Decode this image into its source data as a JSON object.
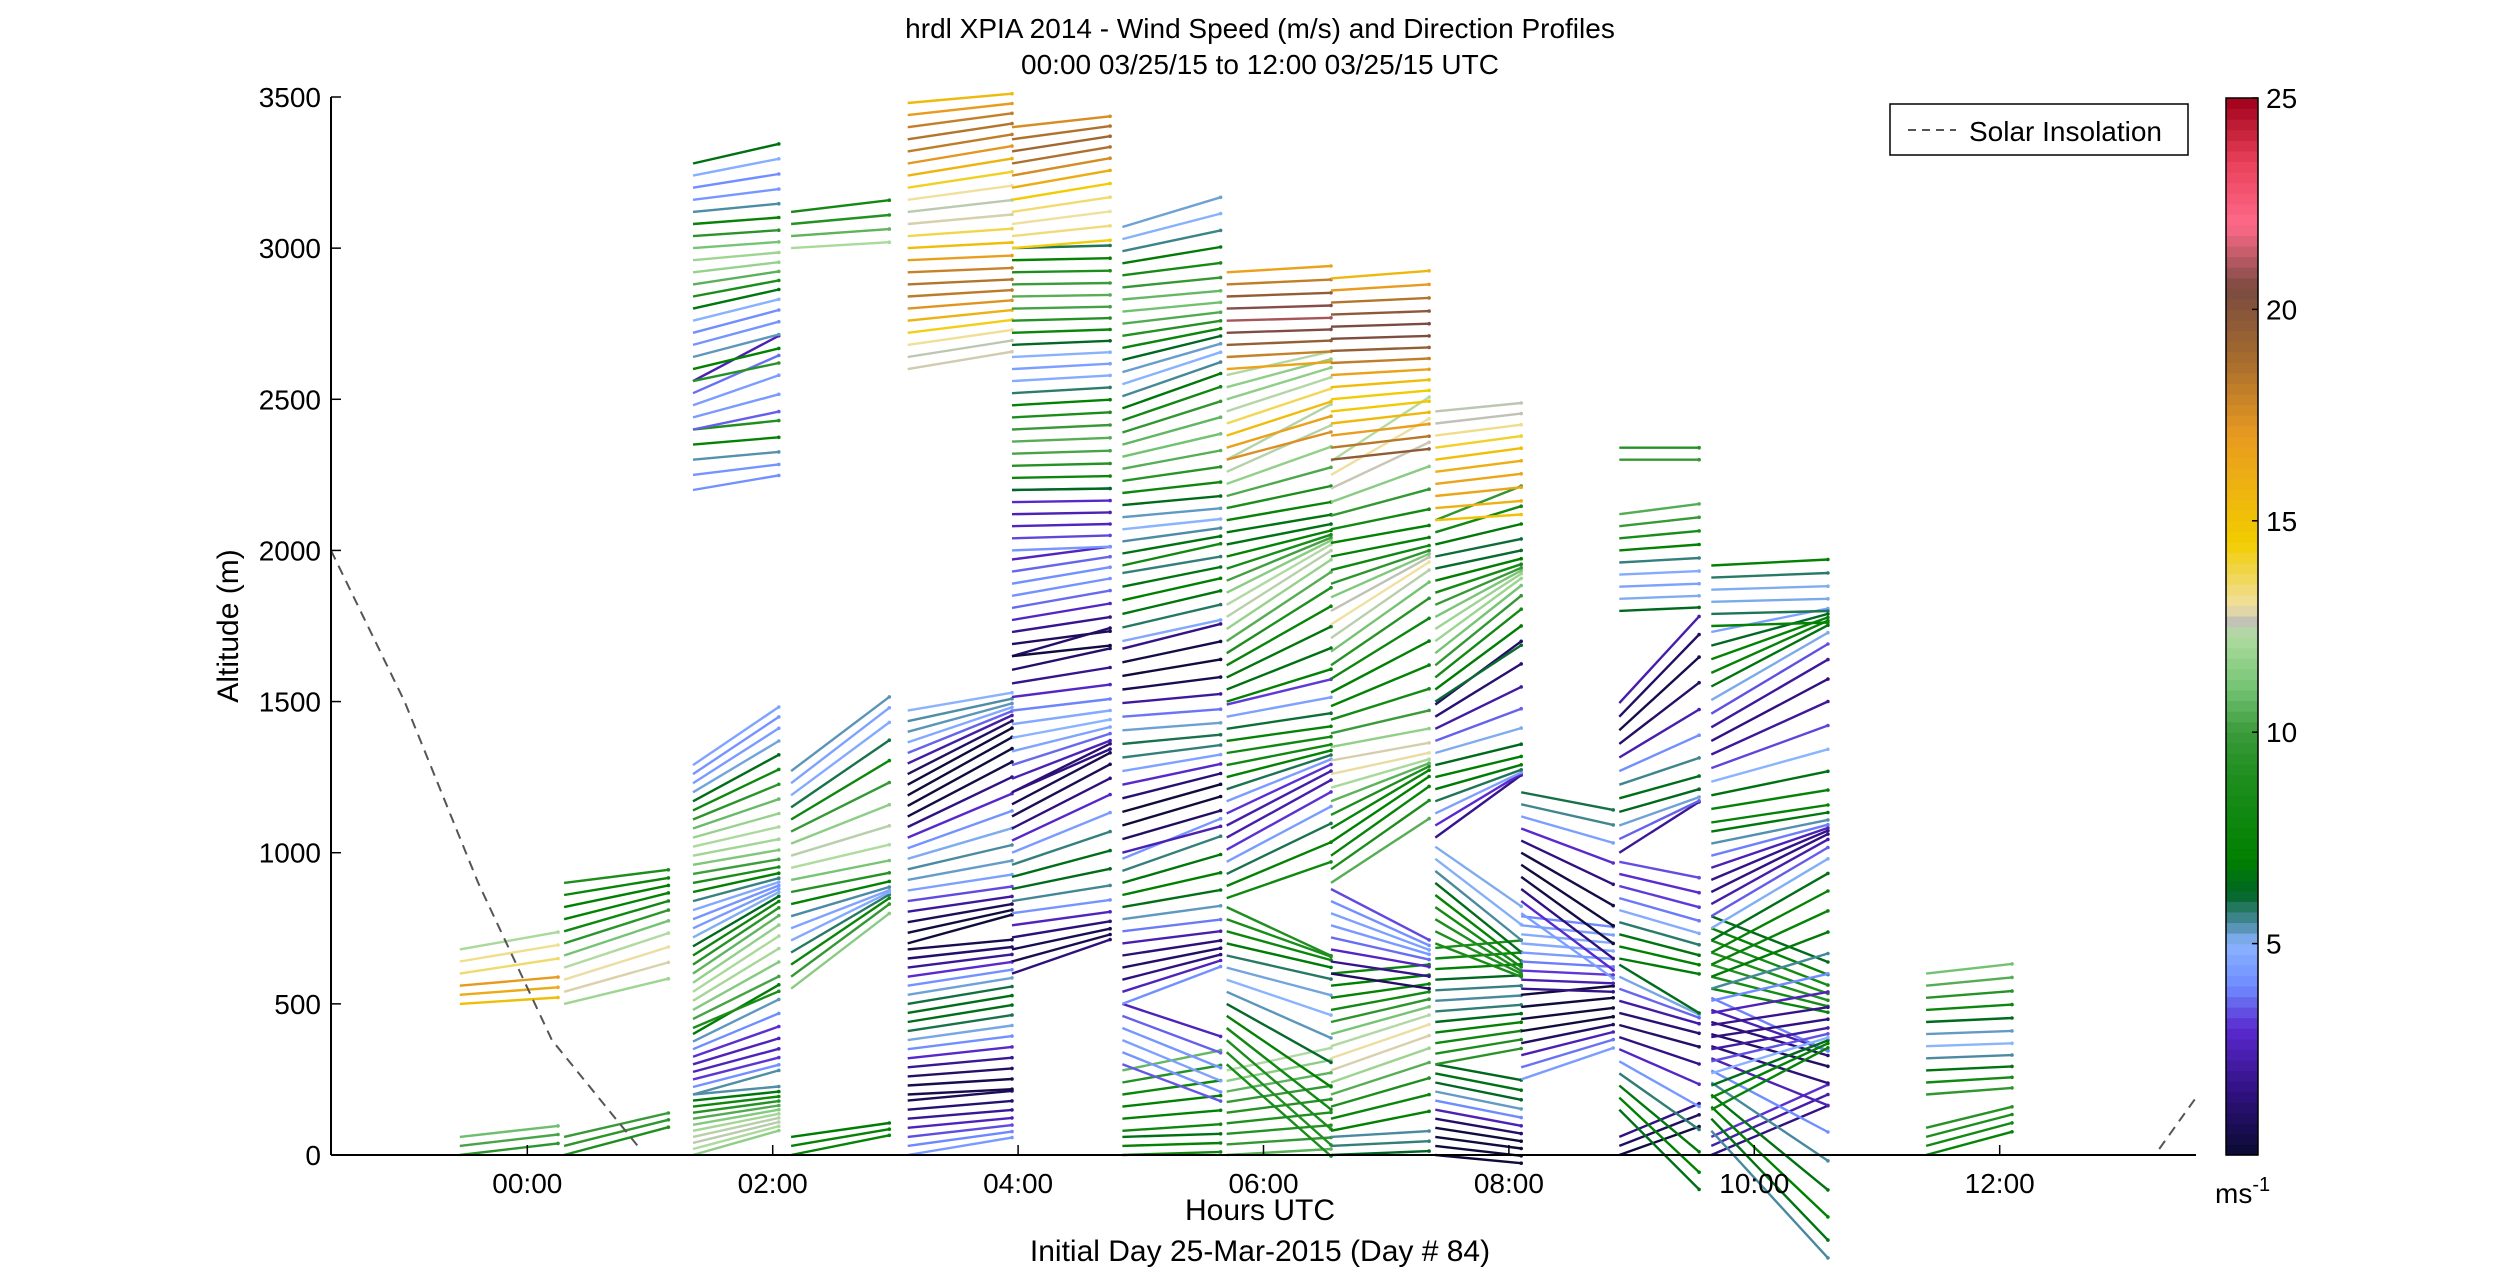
{
  "chart_data": {
    "type": "wind-barb-profile",
    "title": "hrdl XPIA 2014 - Wind Speed (m/s) and Direction Profiles",
    "subtitle": "00:00 03/25/15 to 12:00 03/25/15  UTC",
    "xlabel": "Hours UTC",
    "xlabel2": "Initial Day 25-Mar-2015 (Day # 84)",
    "ylabel": "Altitude (m)",
    "xlim_hours": [
      -1.6,
      13.6
    ],
    "ylim": [
      0,
      3500
    ],
    "x_ticks": [
      {
        "hour": 0,
        "label": "00:00"
      },
      {
        "hour": 2,
        "label": "02:00"
      },
      {
        "hour": 4,
        "label": "04:00"
      },
      {
        "hour": 6,
        "label": "06:00"
      },
      {
        "hour": 8,
        "label": "08:00"
      },
      {
        "hour": 10,
        "label": "10:00"
      },
      {
        "hour": 12,
        "label": "12:00"
      }
    ],
    "y_ticks": [
      0,
      500,
      1000,
      1500,
      2000,
      2500,
      3000,
      3500
    ],
    "legend": {
      "label": "Solar Insolation",
      "placement": "top-right",
      "line_color": "#555555",
      "line_style": "dashed"
    },
    "colorbar": {
      "min": 0,
      "max": 25,
      "ticks": [
        5,
        10,
        15,
        20,
        25
      ],
      "unit_label": "ms",
      "unit_exponent": "-1"
    },
    "colormap": [
      [
        0,
        "#0a0a30"
      ],
      [
        1.5,
        "#301080"
      ],
      [
        3,
        "#5a2ad0"
      ],
      [
        4,
        "#6f8cff"
      ],
      [
        5,
        "#8ab4ff"
      ],
      [
        5.5,
        "#4a8aa0"
      ],
      [
        6.2,
        "#006622"
      ],
      [
        7,
        "#008000"
      ],
      [
        9,
        "#1f8f1f"
      ],
      [
        10,
        "#3a9a3a"
      ],
      [
        11,
        "#72c272"
      ],
      [
        12.3,
        "#b0dca0"
      ],
      [
        12.6,
        "#c0c0b8"
      ],
      [
        13,
        "#f0e0a0"
      ],
      [
        14.5,
        "#f2cc00"
      ],
      [
        17,
        "#e89a20"
      ],
      [
        19,
        "#a06830"
      ],
      [
        20.5,
        "#7a4a40"
      ],
      [
        22,
        "#ff6a8a"
      ],
      [
        23.5,
        "#e8405a"
      ],
      [
        25,
        "#a0001a"
      ]
    ],
    "solar_insolation_curve": [
      {
        "hour": -1.6,
        "alt": 2000
      },
      {
        "hour": -1.0,
        "alt": 1500
      },
      {
        "hour": -0.4,
        "alt": 900
      },
      {
        "hour": 0.2,
        "alt": 380
      },
      {
        "hour": 0.9,
        "alt": 30
      },
      {
        "hour": 13.3,
        "alt": 20
      },
      {
        "hour": 13.6,
        "alt": 190
      }
    ],
    "profiles": [
      {
        "x0": -0.55,
        "x1": 0.25,
        "segments": [
          [
            0,
            60,
            30,
            9.5,
            2,
            0.02
          ],
          [
            500,
            560,
            30,
            14.5,
            3,
            0.02
          ],
          [
            600,
            680,
            40,
            10.5,
            3,
            0.03
          ]
        ]
      },
      {
        "x0": 0.3,
        "x1": 1.15,
        "segments": [
          [
            0,
            60,
            30,
            8.0,
            2,
            0.05
          ],
          [
            500,
            900,
            40,
            10.0,
            3,
            0.06
          ]
        ]
      },
      {
        "x0": 1.35,
        "x1": 2.05,
        "segments": [
          [
            0,
            200,
            20,
            7.5,
            5,
            0.05
          ],
          [
            200,
            420,
            25,
            7.5,
            5,
            0.15
          ],
          [
            420,
            1300,
            30,
            8.2,
            4,
            0.1
          ],
          [
            2200,
            2400,
            50,
            7.0,
            3,
            0.05
          ],
          [
            2400,
            2560,
            40,
            1.5,
            3,
            0.1
          ],
          [
            2560,
            3300,
            40,
            8.0,
            4,
            0.04
          ]
        ]
      },
      {
        "x0": 2.15,
        "x1": 2.95,
        "segments": [
          [
            0,
            60,
            30,
            4.5,
            3,
            0.05
          ],
          [
            550,
            1280,
            40,
            8.5,
            4,
            0.13
          ],
          [
            3000,
            3120,
            40,
            11.0,
            3,
            0.04
          ]
        ]
      },
      {
        "x0": 3.1,
        "x1": 3.95,
        "segments": [
          [
            0,
            200,
            30,
            2.5,
            2,
            0.06
          ],
          [
            200,
            700,
            30,
            3.5,
            3,
            0.03
          ],
          [
            700,
            1500,
            35,
            2.5,
            3,
            0.1
          ],
          [
            2600,
            3480,
            40,
            15.5,
            3,
            0.03
          ]
        ]
      },
      {
        "x0": 3.95,
        "x1": 4.75,
        "segments": [
          [
            600,
            1200,
            40,
            3.5,
            3,
            0.09
          ],
          [
            1200,
            1650,
            45,
            3.0,
            2,
            0.08
          ],
          [
            1650,
            2000,
            40,
            2.2,
            2,
            0.03
          ],
          [
            2000,
            2200,
            40,
            4.5,
            2,
            0.01
          ],
          [
            2200,
            3000,
            40,
            7.5,
            3,
            0.01
          ],
          [
            3000,
            3400,
            40,
            16.0,
            3,
            0.03
          ]
        ]
      },
      {
        "x0": 4.85,
        "x1": 5.65,
        "segments": [
          [
            0,
            80,
            30,
            7.5,
            2,
            0.02
          ],
          [
            80,
            300,
            40,
            10.0,
            3,
            0.04
          ],
          [
            300,
            500,
            40,
            2.5,
            2,
            -0.07
          ],
          [
            500,
            1000,
            40,
            4.0,
            3,
            0.08
          ],
          [
            1000,
            1700,
            45,
            3.0,
            3,
            0.05
          ],
          [
            1700,
            1950,
            45,
            5.0,
            2,
            0.04
          ],
          [
            1950,
            3100,
            40,
            8.0,
            3,
            0.06
          ]
        ]
      },
      {
        "x0": 5.7,
        "x1": 6.55,
        "segments": [
          [
            0,
            300,
            35,
            11.0,
            2,
            0.04
          ],
          [
            300,
            850,
            40,
            7.0,
            2,
            -0.16
          ],
          [
            850,
            1500,
            40,
            5.2,
            3,
            0.1
          ],
          [
            1500,
            2300,
            40,
            9.5,
            3,
            0.12
          ],
          [
            2300,
            2600,
            40,
            14.5,
            3,
            0.06
          ],
          [
            2600,
            2920,
            40,
            18.0,
            3,
            0.02
          ]
        ]
      },
      {
        "x0": 6.55,
        "x1": 7.35,
        "segments": [
          [
            0,
            80,
            30,
            7.5,
            2,
            0.02
          ],
          [
            80,
            600,
            40,
            10.0,
            3,
            0.06
          ],
          [
            600,
            900,
            40,
            2.5,
            2,
            -0.1
          ],
          [
            900,
            2300,
            45,
            10.0,
            3,
            0.12
          ],
          [
            2300,
            2920,
            40,
            17.5,
            3,
            0.02
          ]
        ]
      },
      {
        "x0": 7.4,
        "x1": 8.1,
        "segments": [
          [
            0,
            300,
            30,
            2.5,
            4,
            -0.03
          ],
          [
            300,
            700,
            35,
            7.5,
            2,
            0.03
          ],
          [
            700,
            1050,
            40,
            7.0,
            2,
            -0.12
          ],
          [
            1050,
            1500,
            40,
            4.0,
            3,
            0.14
          ],
          [
            1500,
            2100,
            40,
            9.0,
            3,
            0.12
          ],
          [
            2100,
            2460,
            40,
            14.5,
            2,
            0.02
          ]
        ]
      },
      {
        "x0": 8.1,
        "x1": 8.85,
        "segments": [
          [
            250,
            550,
            40,
            1.5,
            3,
            0.06
          ],
          [
            550,
            800,
            30,
            2.8,
            2,
            -0.02
          ],
          [
            800,
            1200,
            40,
            3.0,
            3,
            -0.12
          ]
        ]
      },
      {
        "x0": 8.9,
        "x1": 9.55,
        "segments": [
          [
            0,
            80,
            30,
            2.0,
            2,
            0.06
          ],
          [
            150,
            650,
            40,
            4.0,
            3,
            -0.14
          ],
          [
            650,
            1000,
            40,
            5.0,
            2,
            -0.04
          ],
          [
            1000,
            1500,
            45,
            3.5,
            3,
            0.15
          ],
          [
            1800,
            2150,
            40,
            7.5,
            3,
            0.02
          ],
          [
            2300,
            2340,
            40,
            11.0,
            2,
            0.0
          ]
        ]
      },
      {
        "x0": 9.65,
        "x1": 10.6,
        "segments": [
          [
            0,
            80,
            30,
            2.5,
            2,
            0.09
          ],
          [
            80,
            550,
            40,
            4.0,
            3,
            -0.22
          ],
          [
            550,
            800,
            40,
            7.0,
            2,
            -0.08
          ],
          [
            150,
            1100,
            40,
            4.5,
            3,
            0.12
          ],
          [
            1100,
            1750,
            45,
            4.5,
            3,
            0.12
          ],
          [
            1750,
            1960,
            40,
            8.0,
            3,
            0.02
          ]
        ]
      },
      {
        "x0": 11.4,
        "x1": 12.1,
        "segments": [
          [
            0,
            100,
            30,
            7.5,
            2,
            0.04
          ],
          [
            200,
            600,
            40,
            8.0,
            3,
            0.02
          ]
        ]
      }
    ]
  }
}
